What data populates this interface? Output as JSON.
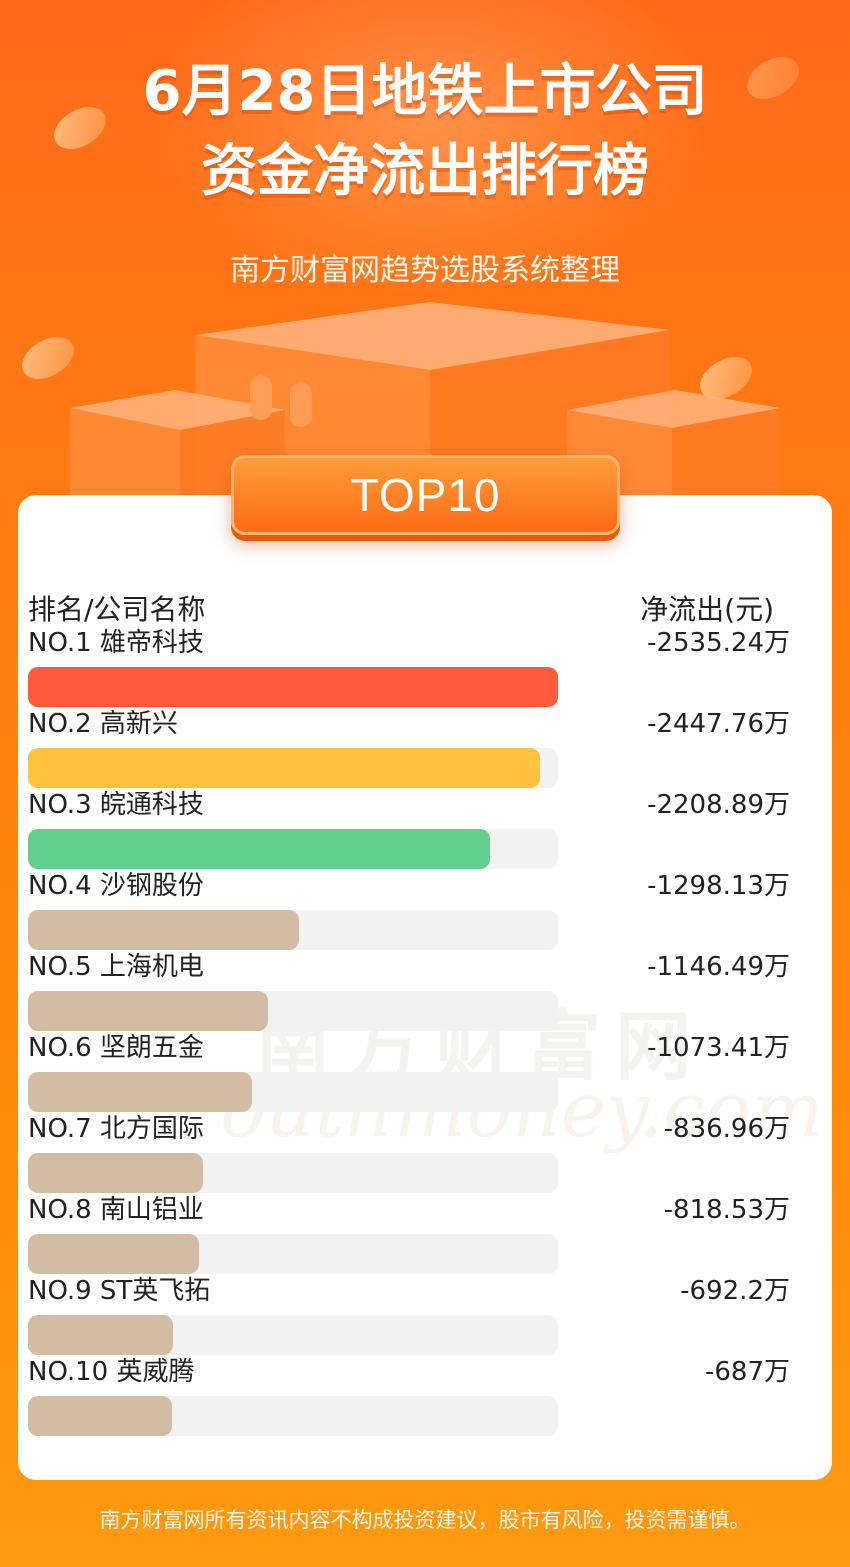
{
  "title_line1": "6月28日地铁上市公司",
  "title_line2": "资金净流出排行榜",
  "subtitle": "南方财富网趋势选股系统整理",
  "badge": "TOP10",
  "watermark": {
    "cn": "南方财富网",
    "en": "outhmoney.com"
  },
  "footer": "南方财富网所有资讯内容不构成投资建议，股市有风险，投资需谨慎。",
  "colors": {
    "rank1": "#ff5a3c",
    "rank2": "#ffc23f",
    "rank3": "#63cf8e",
    "others": "#d2bca4",
    "track": "#f2f2f2"
  },
  "chart_data": {
    "type": "bar",
    "orientation": "horizontal",
    "header_left": "排名/公司名称",
    "header_right": "净流出(元)",
    "categories": [
      "NO.1 雄帝科技",
      "NO.2 高新兴",
      "NO.3 皖通科技",
      "NO.4 沙钢股份",
      "NO.5 上海机电",
      "NO.6 坚朗五金",
      "NO.7 北方国际",
      "NO.8 南山铝业",
      "NO.9 ST英飞拓",
      "NO.10 英威腾"
    ],
    "values": [
      -2535.24,
      -2447.76,
      -2208.89,
      -1298.13,
      -1146.49,
      -1073.41,
      -836.96,
      -818.53,
      -692.2,
      -687
    ],
    "labels": [
      "-2535.24万",
      "-2447.76万",
      "-2208.89万",
      "-1298.13万",
      "-1146.49万",
      "-1073.41万",
      "-836.96万",
      "-818.53万",
      "-692.2万",
      "-687万"
    ],
    "unit": "万"
  }
}
